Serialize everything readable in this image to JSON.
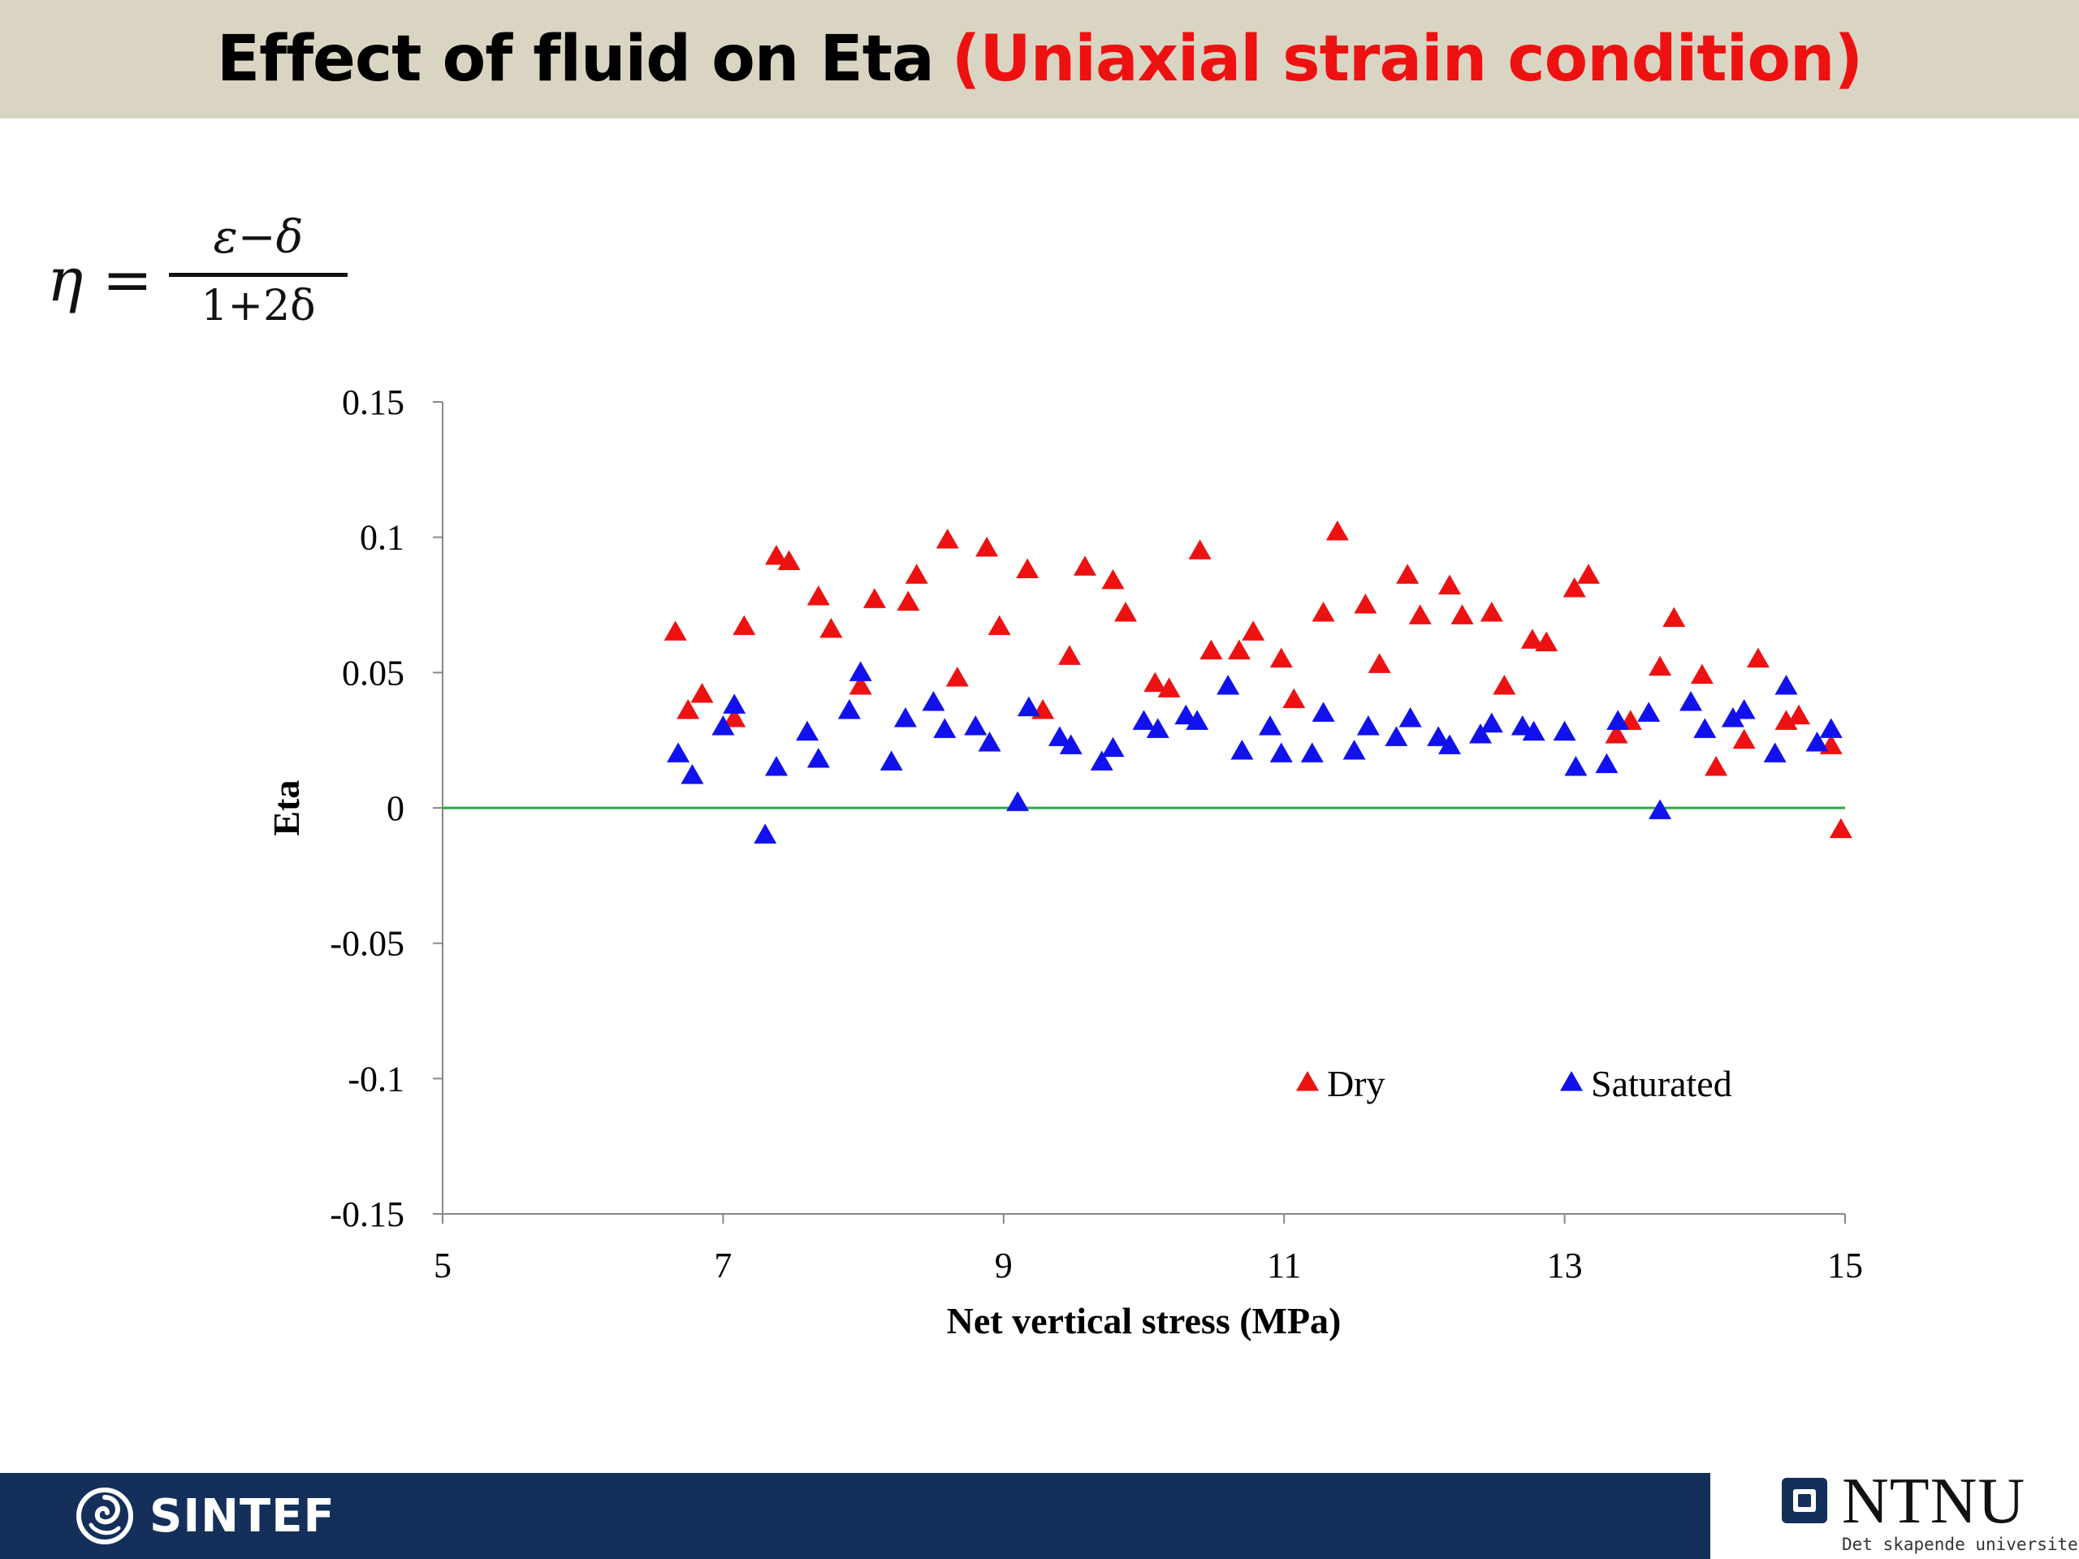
{
  "slide": {
    "title_main": "Effect of fluid on Eta",
    "title_accent": "(Uniaxial strain condition)",
    "title_accent_color": "#ee1111",
    "formula": {
      "lhs": "η =",
      "numerator": "ε−δ",
      "denominator": "1+2δ"
    }
  },
  "footer": {
    "sintef_label": "SINTEF",
    "ntnu_label": "NTNU",
    "ntnu_tagline": "Det skapende universitet"
  },
  "chart_data": {
    "type": "scatter",
    "title": "",
    "xlabel": "Net vertical stress (MPa)",
    "ylabel": "Eta",
    "xlim": [
      5,
      15
    ],
    "ylim": [
      -0.15,
      0.15
    ],
    "xticks": [
      "5",
      "7",
      "9",
      "11",
      "13",
      "15"
    ],
    "yticks": [
      "0.15",
      "0.1",
      "0.05",
      "0",
      "-0.05",
      "-0.1",
      "-0.15"
    ],
    "grid": false,
    "legend": "bottom-right",
    "reference_line": {
      "y": 0,
      "color": "#2aa84a"
    },
    "series": [
      {
        "name": "Dry",
        "color": "#ee1111",
        "marker": "triangle",
        "points": [
          [
            6.66,
            0.065
          ],
          [
            6.75,
            0.036
          ],
          [
            6.85,
            0.042
          ],
          [
            7.08,
            0.033
          ],
          [
            7.15,
            0.067
          ],
          [
            7.38,
            0.093
          ],
          [
            7.47,
            0.091
          ],
          [
            7.68,
            0.078
          ],
          [
            7.77,
            0.066
          ],
          [
            7.98,
            0.045
          ],
          [
            8.08,
            0.077
          ],
          [
            8.32,
            0.076
          ],
          [
            8.38,
            0.086
          ],
          [
            8.6,
            0.099
          ],
          [
            8.67,
            0.048
          ],
          [
            8.88,
            0.096
          ],
          [
            8.97,
            0.067
          ],
          [
            9.17,
            0.088
          ],
          [
            9.28,
            0.036
          ],
          [
            9.47,
            0.056
          ],
          [
            9.58,
            0.089
          ],
          [
            9.78,
            0.084
          ],
          [
            9.87,
            0.072
          ],
          [
            10.08,
            0.046
          ],
          [
            10.18,
            0.044
          ],
          [
            10.4,
            0.095
          ],
          [
            10.48,
            0.058
          ],
          [
            10.68,
            0.058
          ],
          [
            10.78,
            0.065
          ],
          [
            10.98,
            0.055
          ],
          [
            11.07,
            0.04
          ],
          [
            11.28,
            0.072
          ],
          [
            11.38,
            0.102
          ],
          [
            11.58,
            0.075
          ],
          [
            11.68,
            0.053
          ],
          [
            11.88,
            0.086
          ],
          [
            11.97,
            0.071
          ],
          [
            12.18,
            0.082
          ],
          [
            12.27,
            0.071
          ],
          [
            12.48,
            0.072
          ],
          [
            12.57,
            0.045
          ],
          [
            12.77,
            0.062
          ],
          [
            12.87,
            0.061
          ],
          [
            13.07,
            0.081
          ],
          [
            13.17,
            0.086
          ],
          [
            13.37,
            0.027
          ],
          [
            13.47,
            0.032
          ],
          [
            13.68,
            0.052
          ],
          [
            13.78,
            0.07
          ],
          [
            13.98,
            0.049
          ],
          [
            14.08,
            0.015
          ],
          [
            14.28,
            0.025
          ],
          [
            14.38,
            0.055
          ],
          [
            14.58,
            0.032
          ],
          [
            14.67,
            0.034
          ],
          [
            14.9,
            0.023
          ],
          [
            14.97,
            -0.008
          ]
        ]
      },
      {
        "name": "Saturated",
        "color": "#1111ee",
        "marker": "triangle",
        "points": [
          [
            6.68,
            0.02
          ],
          [
            6.78,
            0.012
          ],
          [
            7.0,
            0.03
          ],
          [
            7.08,
            0.038
          ],
          [
            7.3,
            -0.01
          ],
          [
            7.38,
            0.015
          ],
          [
            7.6,
            0.028
          ],
          [
            7.68,
            0.018
          ],
          [
            7.9,
            0.036
          ],
          [
            7.98,
            0.05
          ],
          [
            8.2,
            0.017
          ],
          [
            8.3,
            0.033
          ],
          [
            8.5,
            0.039
          ],
          [
            8.58,
            0.029
          ],
          [
            8.8,
            0.03
          ],
          [
            8.9,
            0.024
          ],
          [
            9.1,
            0.002
          ],
          [
            9.18,
            0.037
          ],
          [
            9.4,
            0.026
          ],
          [
            9.48,
            0.023
          ],
          [
            9.7,
            0.017
          ],
          [
            9.78,
            0.022
          ],
          [
            10.0,
            0.032
          ],
          [
            10.1,
            0.029
          ],
          [
            10.3,
            0.034
          ],
          [
            10.38,
            0.032
          ],
          [
            10.6,
            0.045
          ],
          [
            10.7,
            0.021
          ],
          [
            10.9,
            0.03
          ],
          [
            10.98,
            0.02
          ],
          [
            11.2,
            0.02
          ],
          [
            11.28,
            0.035
          ],
          [
            11.5,
            0.021
          ],
          [
            11.6,
            0.03
          ],
          [
            11.8,
            0.026
          ],
          [
            11.9,
            0.033
          ],
          [
            12.1,
            0.026
          ],
          [
            12.18,
            0.023
          ],
          [
            12.4,
            0.027
          ],
          [
            12.48,
            0.031
          ],
          [
            12.7,
            0.03
          ],
          [
            12.78,
            0.028
          ],
          [
            13.0,
            0.028
          ],
          [
            13.08,
            0.015
          ],
          [
            13.3,
            0.016
          ],
          [
            13.38,
            0.032
          ],
          [
            13.6,
            0.035
          ],
          [
            13.68,
            -0.001
          ],
          [
            13.9,
            0.039
          ],
          [
            14.0,
            0.029
          ],
          [
            14.2,
            0.033
          ],
          [
            14.28,
            0.036
          ],
          [
            14.5,
            0.02
          ],
          [
            14.58,
            0.045
          ],
          [
            14.8,
            0.024
          ],
          [
            14.9,
            0.029
          ]
        ]
      }
    ]
  }
}
